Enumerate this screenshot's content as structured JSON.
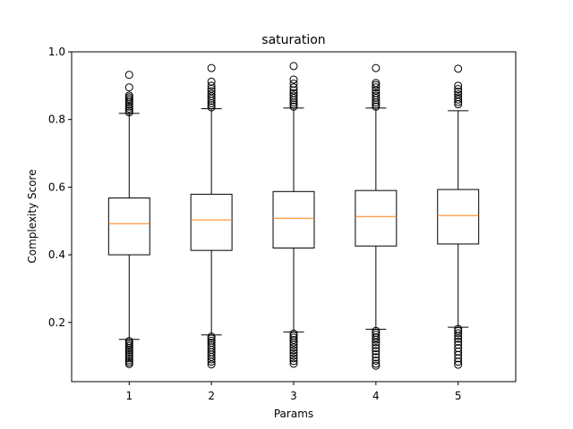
{
  "chart_data": {
    "type": "box",
    "title": "saturation",
    "xlabel": "Params",
    "ylabel": "Complexity Score",
    "categories": [
      "1",
      "2",
      "3",
      "4",
      "5"
    ],
    "ylim": [
      0.025,
      1.0
    ],
    "yticks": [
      0.2,
      0.4,
      0.6,
      0.8,
      1.0
    ],
    "ytick_labels": [
      "0.2",
      "0.4",
      "0.6",
      "0.8",
      "1.0"
    ],
    "grid": false,
    "median_color": "#ff7f0e",
    "box_color": "#000000",
    "boxes": [
      {
        "label": "1",
        "whisker_low": 0.15,
        "q1": 0.4,
        "median": 0.492,
        "q3": 0.568,
        "whisker_high": 0.818,
        "outliers_high": [
          0.821,
          0.826,
          0.832,
          0.838,
          0.845,
          0.851,
          0.856,
          0.861,
          0.866,
          0.871,
          0.895,
          0.932
        ],
        "outliers_low": [
          0.145,
          0.14,
          0.135,
          0.13,
          0.124,
          0.118,
          0.112,
          0.106,
          0.1,
          0.094,
          0.088,
          0.082,
          0.077
        ]
      },
      {
        "label": "2",
        "whisker_low": 0.163,
        "q1": 0.413,
        "median": 0.503,
        "q3": 0.579,
        "whisker_high": 0.832,
        "outliers_high": [
          0.836,
          0.842,
          0.848,
          0.855,
          0.862,
          0.869,
          0.876,
          0.884,
          0.891,
          0.9,
          0.912,
          0.952
        ],
        "outliers_low": [
          0.158,
          0.152,
          0.146,
          0.14,
          0.133,
          0.126,
          0.119,
          0.112,
          0.105,
          0.098,
          0.091,
          0.084,
          0.076
        ]
      },
      {
        "label": "3",
        "whisker_low": 0.172,
        "q1": 0.42,
        "median": 0.508,
        "q3": 0.587,
        "whisker_high": 0.834,
        "outliers_high": [
          0.838,
          0.844,
          0.85,
          0.857,
          0.864,
          0.871,
          0.878,
          0.886,
          0.895,
          0.906,
          0.918,
          0.958
        ],
        "outliers_low": [
          0.167,
          0.161,
          0.155,
          0.148,
          0.141,
          0.134,
          0.126,
          0.118,
          0.11,
          0.102,
          0.094,
          0.086,
          0.078
        ]
      },
      {
        "label": "4",
        "whisker_low": 0.18,
        "q1": 0.426,
        "median": 0.513,
        "q3": 0.59,
        "whisker_high": 0.834,
        "outliers_high": [
          0.838,
          0.844,
          0.85,
          0.857,
          0.864,
          0.871,
          0.878,
          0.886,
          0.895,
          0.902,
          0.908,
          0.952
        ],
        "outliers_low": [
          0.175,
          0.169,
          0.163,
          0.156,
          0.149,
          0.141,
          0.133,
          0.124,
          0.115,
          0.106,
          0.097,
          0.087,
          0.078,
          0.072
        ]
      },
      {
        "label": "5",
        "whisker_low": 0.186,
        "q1": 0.432,
        "median": 0.516,
        "q3": 0.593,
        "whisker_high": 0.826,
        "outliers_high": [
          0.845,
          0.852,
          0.859,
          0.866,
          0.874,
          0.882,
          0.89,
          0.9,
          0.95
        ],
        "outliers_low": [
          0.181,
          0.175,
          0.168,
          0.16,
          0.152,
          0.143,
          0.134,
          0.124,
          0.114,
          0.104,
          0.094,
          0.084,
          0.075
        ]
      }
    ]
  }
}
